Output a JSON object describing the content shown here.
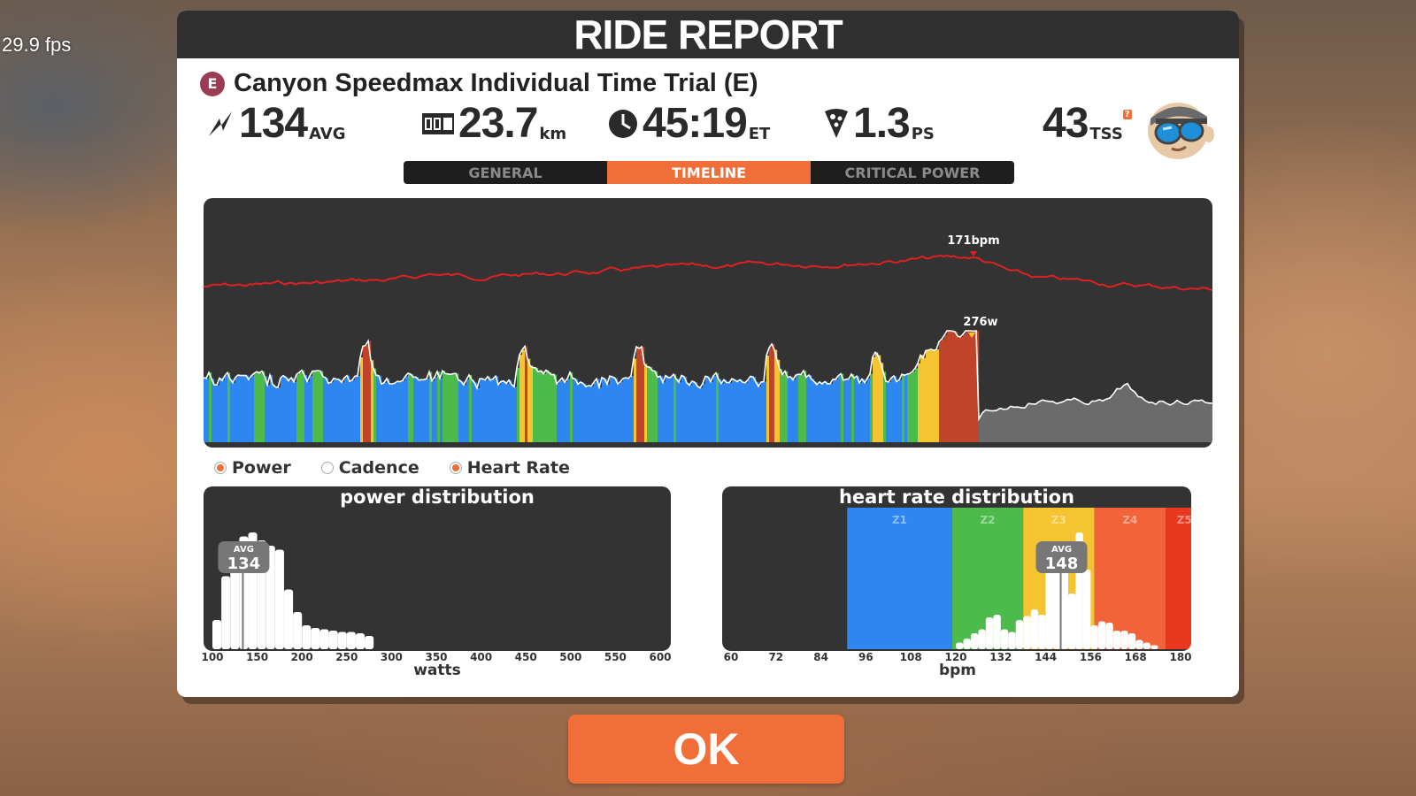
{
  "fps": "29.9 fps",
  "title": "RIDE REPORT",
  "event": {
    "category": "E",
    "name": "Canyon Speedmax Individual Time Trial (E)"
  },
  "stats": {
    "power": {
      "value": "134",
      "unit": "AVG"
    },
    "distance": {
      "value": "23.7",
      "unit": "km"
    },
    "time": {
      "value": "45:19",
      "unit": "ET"
    },
    "pizza": {
      "value": "1.3",
      "unit": "PS"
    },
    "tss": {
      "value": "43",
      "unit": "TSS",
      "help": "?"
    }
  },
  "tabs": [
    {
      "label": "GENERAL",
      "active": false
    },
    {
      "label": "TIMELINE",
      "active": true
    },
    {
      "label": "CRITICAL POWER",
      "active": false
    }
  ],
  "timeline": {
    "hr_peak_label": "171bpm",
    "power_peak_label": "276w"
  },
  "legend": [
    {
      "label": "Power",
      "checked": true
    },
    {
      "label": "Cadence",
      "checked": false
    },
    {
      "label": "Heart Rate",
      "checked": true
    }
  ],
  "power_distribution": {
    "title": "power distribution",
    "avg_label": "AVG",
    "avg_value": "134",
    "x_ticks": [
      "100",
      "150",
      "200",
      "250",
      "300",
      "350",
      "400",
      "450",
      "500",
      "550",
      "600"
    ],
    "x_label": "watts"
  },
  "hr_distribution": {
    "title": "heart rate distribution",
    "avg_label": "AVG",
    "avg_value": "148",
    "zones": [
      "Z1",
      "Z2",
      "Z3",
      "Z4",
      "Z5"
    ],
    "x_ticks": [
      "60",
      "72",
      "84",
      "96",
      "108",
      "120",
      "132",
      "144",
      "156",
      "168",
      "180"
    ],
    "x_label": "bpm"
  },
  "ok_label": "OK",
  "colors": {
    "accent": "#f06f38",
    "panel_dark": "#333333",
    "hr_line": "#e02020",
    "zone_blue": "#2e86f0",
    "zone_green": "#4cbb4c",
    "zone_yellow": "#f5c531",
    "zone_orange": "#f2633a",
    "zone_red": "#e8391f"
  },
  "chart_data": [
    {
      "type": "area",
      "name": "timeline",
      "series": [
        {
          "name": "Heart Rate",
          "peak": 171,
          "peak_label": "171bpm"
        },
        {
          "name": "Power",
          "peak": 276,
          "peak_label": "276w"
        }
      ]
    },
    {
      "type": "bar",
      "title": "power distribution",
      "xlabel": "watts",
      "x": [
        100,
        110,
        120,
        130,
        140,
        150,
        160,
        170,
        180,
        190,
        200,
        210,
        220,
        230,
        240,
        250,
        260,
        270,
        280,
        290
      ],
      "values": [
        22,
        55,
        80,
        85,
        88,
        82,
        78,
        75,
        45,
        28,
        18,
        16,
        15,
        14,
        13,
        13,
        12,
        10,
        0,
        0
      ],
      "xlim": [
        100,
        600
      ],
      "avg": 134
    },
    {
      "type": "bar",
      "title": "heart rate distribution",
      "xlabel": "bpm",
      "x": [
        120,
        122,
        124,
        126,
        128,
        130,
        132,
        134,
        136,
        138,
        140,
        142,
        144,
        146,
        148,
        150,
        152,
        154,
        156,
        158,
        160,
        162,
        164,
        166,
        168,
        170,
        172
      ],
      "values": [
        5,
        8,
        12,
        15,
        24,
        26,
        15,
        13,
        22,
        25,
        30,
        26,
        60,
        74,
        62,
        42,
        88,
        60,
        18,
        21,
        20,
        14,
        14,
        12,
        7,
        5,
        3
      ],
      "xlim": [
        60,
        180
      ],
      "avg": 148,
      "zones": [
        "Z1",
        "Z2",
        "Z3",
        "Z4",
        "Z5"
      ]
    }
  ]
}
